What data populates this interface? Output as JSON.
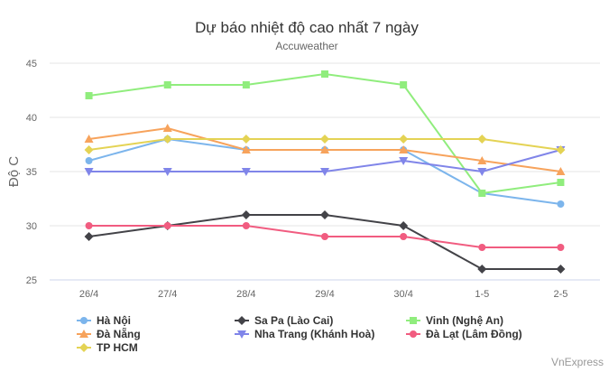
{
  "chart_data": {
    "type": "line",
    "title": "Dự báo nhiệt độ cao nhất 7 ngày",
    "subtitle": "Accuweather",
    "ylabel": "Độ C",
    "xlabel": "",
    "ylim": [
      25,
      45
    ],
    "yticks": [
      25,
      30,
      35,
      40,
      45
    ],
    "categories": [
      "26/4",
      "27/4",
      "28/4",
      "29/4",
      "30/4",
      "1-5",
      "2-5"
    ],
    "grid": "horizontal",
    "legend_position": "bottom-left",
    "series": [
      {
        "name": "Hà Nội",
        "color": "#7cb5ec",
        "marker": "circle",
        "values": [
          36,
          38,
          37,
          37,
          37,
          33,
          32
        ]
      },
      {
        "name": "Sa Pa (Lào Cai)",
        "color": "#434348",
        "marker": "diamond",
        "values": [
          29,
          30,
          31,
          31,
          30,
          26,
          26
        ]
      },
      {
        "name": "Vinh (Nghệ An)",
        "color": "#90ed7d",
        "marker": "square",
        "values": [
          42,
          43,
          43,
          44,
          43,
          33,
          34
        ]
      },
      {
        "name": "Đà Nẵng",
        "color": "#f7a35c",
        "marker": "triangle",
        "values": [
          38,
          39,
          37,
          37,
          37,
          36,
          35
        ]
      },
      {
        "name": "Nha Trang (Khánh Hoà)",
        "color": "#8085e9",
        "marker": "triangle-down",
        "values": [
          35,
          35,
          35,
          35,
          36,
          35,
          37
        ]
      },
      {
        "name": "Đà Lạt (Lâm Đồng)",
        "color": "#f15c80",
        "marker": "circle",
        "values": [
          30,
          30,
          30,
          29,
          29,
          28,
          28
        ]
      },
      {
        "name": "TP HCM",
        "color": "#e4d354",
        "marker": "diamond",
        "values": [
          37,
          38,
          38,
          38,
          38,
          38,
          37
        ]
      }
    ],
    "credit": "VnExpress"
  }
}
